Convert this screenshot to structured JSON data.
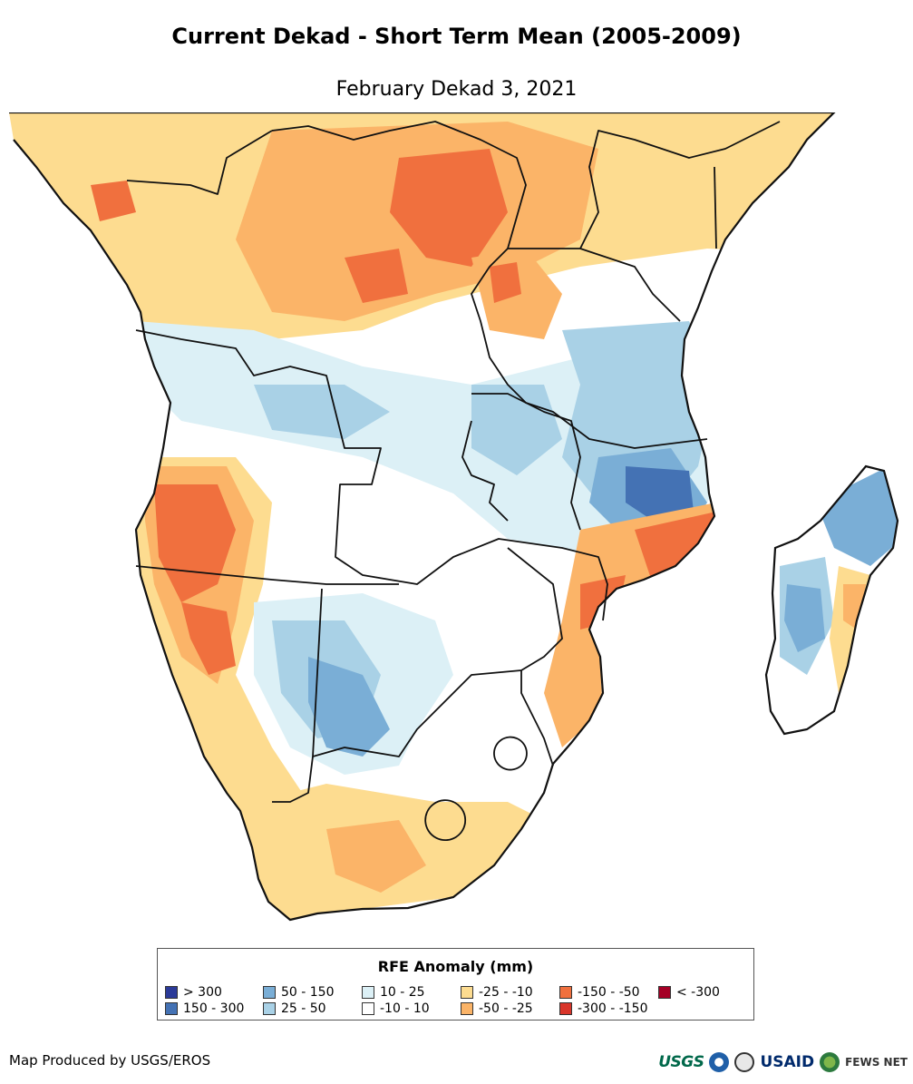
{
  "title": "Current Dekad - Short Term Mean (2005-2009)",
  "subtitle": "February Dekad 3, 2021",
  "legend": {
    "title": "RFE Anomaly (mm)",
    "items": [
      {
        "label": "> 300",
        "color": "#2b3a98"
      },
      {
        "label": "150 - 300",
        "color": "#4472b4"
      },
      {
        "label": "50 - 150",
        "color": "#7aaed6"
      },
      {
        "label": "25 - 50",
        "color": "#a9d1e6"
      },
      {
        "label": "10 - 25",
        "color": "#dcf0f6"
      },
      {
        "label": "-10 - 10",
        "color": "#ffffff"
      },
      {
        "label": "-25 - -10",
        "color": "#fddc90"
      },
      {
        "label": "-50 - -25",
        "color": "#fbb468"
      },
      {
        "label": "-150 - -50",
        "color": "#f0703e"
      },
      {
        "label": "-300 - -150",
        "color": "#d9352a"
      },
      {
        "label": "< -300",
        "color": "#a50026"
      }
    ]
  },
  "credit": "Map Produced by USGS/EROS",
  "logos": {
    "usgs": "USGS",
    "usaid": "USAID",
    "fews": "FEWS NET"
  }
}
